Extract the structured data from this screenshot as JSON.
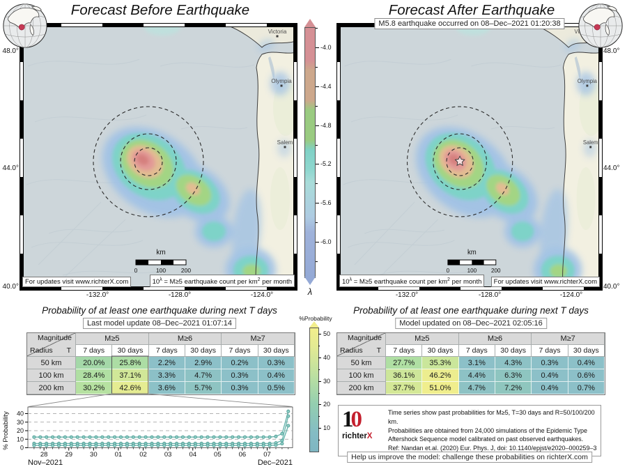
{
  "header": {
    "left_title": "Forecast Before Earthquake",
    "right_title": "Forecast After Earthquake",
    "event_banner": "M5.8 earthquake occurred on 08–Dec–2021 01:20:38"
  },
  "maps": {
    "lat_labels": [
      "48.0°",
      "44.0°",
      "40.0°"
    ],
    "lon_labels": [
      "-132.0°",
      "-128.0°",
      "-124.0°"
    ],
    "cities": [
      "Victoria",
      "Olympia",
      "Salem"
    ],
    "scalebar": {
      "label": "km",
      "ticks": [
        "0",
        "100",
        "200"
      ]
    },
    "updates_note": "For updates visit www.richterX.com",
    "lambda_note": "10^λ = M≥5 earthquake count per km^2 per month"
  },
  "colorbar_lambda": {
    "label": "λ",
    "ticks": [
      "-4.0",
      "-4.4",
      "-4.8",
      "-5.2",
      "-5.6",
      "-6.0"
    ]
  },
  "colorbar_prob": {
    "label": "%Probability",
    "ticks": [
      "50",
      "40",
      "30",
      "20",
      "10"
    ]
  },
  "tables": {
    "left": {
      "title": "Probability of at least one earthquake during next T days",
      "update_label": "Last model update 08–Dec–2021 01:07:14",
      "corner": {
        "top": "Magnitude",
        "bottom_left": "Radius",
        "bottom_right": "T"
      },
      "mag_groups": [
        "M≥5",
        "M≥6",
        "M≥7"
      ],
      "period_headers": [
        "7 days",
        "30 days",
        "7 days",
        "30 days",
        "7 days",
        "30 days"
      ],
      "rows": [
        {
          "radius": "50 km",
          "values": [
            "20.0%",
            "25.8%",
            "2.2%",
            "2.9%",
            "0.2%",
            "0.3%"
          ]
        },
        {
          "radius": "100 km",
          "values": [
            "28.4%",
            "37.1%",
            "3.3%",
            "4.7%",
            "0.3%",
            "0.4%"
          ]
        },
        {
          "radius": "200 km",
          "values": [
            "30.2%",
            "42.6%",
            "3.6%",
            "5.7%",
            "0.3%",
            "0.5%"
          ]
        }
      ],
      "highlight_column": 1
    },
    "right": {
      "title": "Probability of at least one earthquake during next T days",
      "update_label": "Model updated on 08–Dec–2021 02:05:16",
      "corner": {
        "top": "Magnitude",
        "bottom_left": "Radius",
        "bottom_right": "T"
      },
      "mag_groups": [
        "M≥5",
        "M≥6",
        "M≥7"
      ],
      "period_headers": [
        "7 days",
        "30 days",
        "7 days",
        "30 days",
        "7 days",
        "30 days"
      ],
      "rows": [
        {
          "radius": "50 km",
          "values": [
            "27.7%",
            "35.3%",
            "3.1%",
            "4.3%",
            "0.3%",
            "0.4%"
          ]
        },
        {
          "radius": "100 km",
          "values": [
            "36.1%",
            "46.2%",
            "4.4%",
            "6.3%",
            "0.4%",
            "0.6%"
          ]
        },
        {
          "radius": "200 km",
          "values": [
            "37.7%",
            "51.0%",
            "4.7%",
            "7.2%",
            "0.4%",
            "0.7%"
          ]
        }
      ]
    }
  },
  "chart_data": {
    "type": "line",
    "ylabel": "% Probability",
    "xlabel_left": "Nov–2021",
    "xlabel_right": "Dec–2021",
    "xtick_labels": [
      "28",
      "29",
      "30",
      "01",
      "02",
      "03",
      "04",
      "05",
      "06",
      "07"
    ],
    "ylim": [
      0,
      45
    ],
    "yticks": [
      0,
      10,
      20,
      30,
      40
    ],
    "grid": "dashed-horizontal",
    "x_start": 27.6,
    "x_step": 0.25,
    "series": [
      {
        "name": "R=200 km, T=30 days",
        "color": "#63b2aa",
        "y": [
          12.5,
          12.5,
          12.5,
          12.5,
          12.5,
          12.5,
          12.5,
          12.5,
          12.5,
          12.5,
          12.5,
          12.5,
          12.5,
          12.5,
          12.5,
          12.5,
          12.5,
          12.5,
          12.5,
          12.5,
          12.5,
          12.5,
          12.5,
          12.5,
          12.5,
          12.5,
          12.5,
          12.5,
          12.5,
          12.5,
          12.5,
          12.5,
          12.5,
          12.5,
          12.5,
          12.5,
          12.5,
          12.5,
          12.5,
          13.2,
          16.5,
          42.6
        ]
      },
      {
        "name": "R=100 km, T=30 days",
        "color": "#63b2aa",
        "y": [
          5.0,
          5.0,
          5.0,
          5.0,
          5.0,
          5.0,
          5.0,
          5.0,
          5.0,
          5.0,
          5.0,
          5.0,
          5.0,
          5.0,
          5.0,
          5.0,
          5.0,
          5.0,
          5.0,
          5.0,
          5.0,
          5.0,
          5.0,
          5.0,
          5.0,
          5.0,
          5.0,
          5.0,
          5.0,
          5.0,
          5.0,
          5.0,
          5.0,
          5.0,
          5.0,
          5.0,
          5.0,
          5.0,
          5.0,
          5.6,
          8.5,
          37.1
        ]
      },
      {
        "name": "R=50 km, T=30 days",
        "color": "#63b2aa",
        "y": [
          2.7,
          2.7,
          2.7,
          2.7,
          2.7,
          2.7,
          2.7,
          2.7,
          2.7,
          2.7,
          2.7,
          2.7,
          2.7,
          2.7,
          2.7,
          2.7,
          2.7,
          2.7,
          2.7,
          2.7,
          2.7,
          2.7,
          2.7,
          2.7,
          2.7,
          2.7,
          2.7,
          2.7,
          2.7,
          2.7,
          2.7,
          2.7,
          2.7,
          2.7,
          2.7,
          2.7,
          2.7,
          2.7,
          2.7,
          3.1,
          4.8,
          25.8
        ]
      }
    ]
  },
  "footer": {
    "logo_mark": "10",
    "logo_text": "richterX",
    "info_lines": "Time series show past probabilities for M≥5, T=30 days and R=50/100/200 km.\nProbabilities are obtained from 24,000 simulations of the Epidemic Type\nAftershock Sequence model calibrated on past observed earthquakes.\nRef: Nandan et.al. (2020) Eur. Phys. J, doi: 10.1140/epjst/e2020–000259–3",
    "challenge": "Help us improve the model: challenge these probabilities on richterX.com"
  },
  "colors": {
    "accent_red": "#c4202e",
    "teal_cell": "#8cc0c8",
    "yellow_cell": "#f2ef8c",
    "series_line": "#63b2aa",
    "series_dot_fill": "#8ecdc5",
    "series_dot_stroke": "#47968e",
    "ocean": "#cdd6da",
    "land": "#f2f0e1"
  }
}
